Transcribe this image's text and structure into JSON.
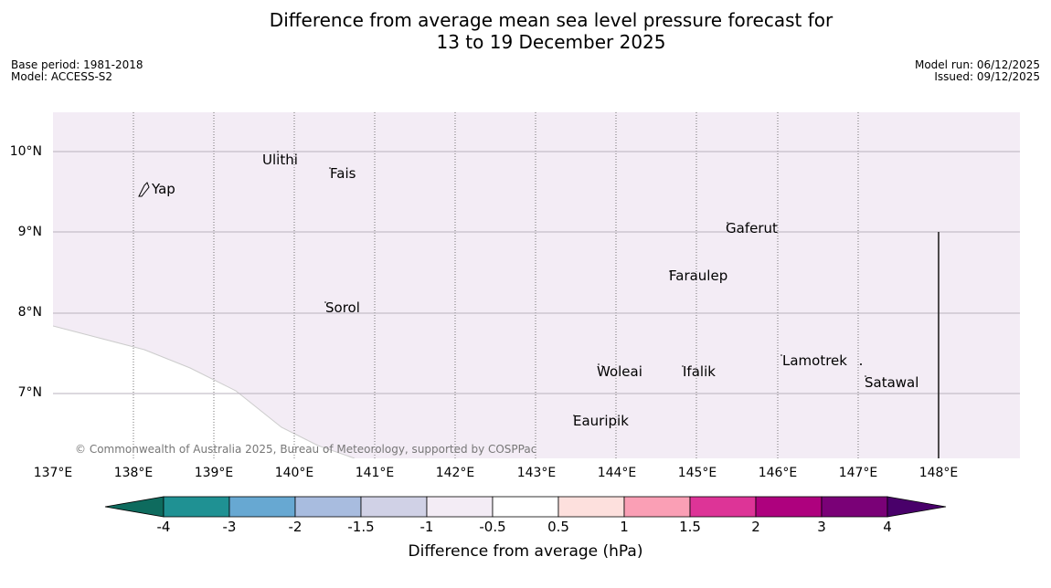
{
  "header": {
    "title_line1": "Difference from average mean sea level pressure forecast for",
    "title_line2": "13 to 19 December 2025",
    "base_period": "Base period: 1981-2018",
    "model": "Model: ACCESS-S2",
    "model_run": "Model run: 06/12/2025",
    "issued": "Issued: 09/12/2025"
  },
  "map": {
    "latitude_labels": [
      "10°N",
      "9°N",
      "8°N",
      "7°N"
    ],
    "longitude_labels": [
      "137°E",
      "138°E",
      "139°E",
      "140°E",
      "141°E",
      "142°E",
      "143°E",
      "144°E",
      "145°E",
      "146°E",
      "147°E",
      "148°E"
    ],
    "places": [
      "Yap",
      "Ulithi",
      "Fais",
      "Gaferut",
      "Faraulep",
      "Sorol",
      "Woleai",
      "Ifalik",
      "Lamotrek",
      "Satawal",
      "Eauripik"
    ],
    "field_color": "#f3ecf5",
    "field_category": "-1 to -0.5",
    "copyright": "© Commonwealth of Australia 2025, Bureau of Meteorology, supported by COSPPac"
  },
  "colorbar": {
    "ticks": [
      "-4",
      "-3",
      "-2",
      "-1.5",
      "-1",
      "-0.5",
      "0.5",
      "1",
      "1.5",
      "2",
      "3",
      "4"
    ],
    "colors": [
      "#0e6b5e",
      "#1f9193",
      "#67a8d2",
      "#a8bcdf",
      "#d0d1e6",
      "#f3ecf5",
      "#ffffff",
      "#fde0dd",
      "#fa9fb5",
      "#dd3497",
      "#ae017e",
      "#7a0177",
      "#49006a"
    ],
    "label": "Difference from average (hPa)"
  }
}
